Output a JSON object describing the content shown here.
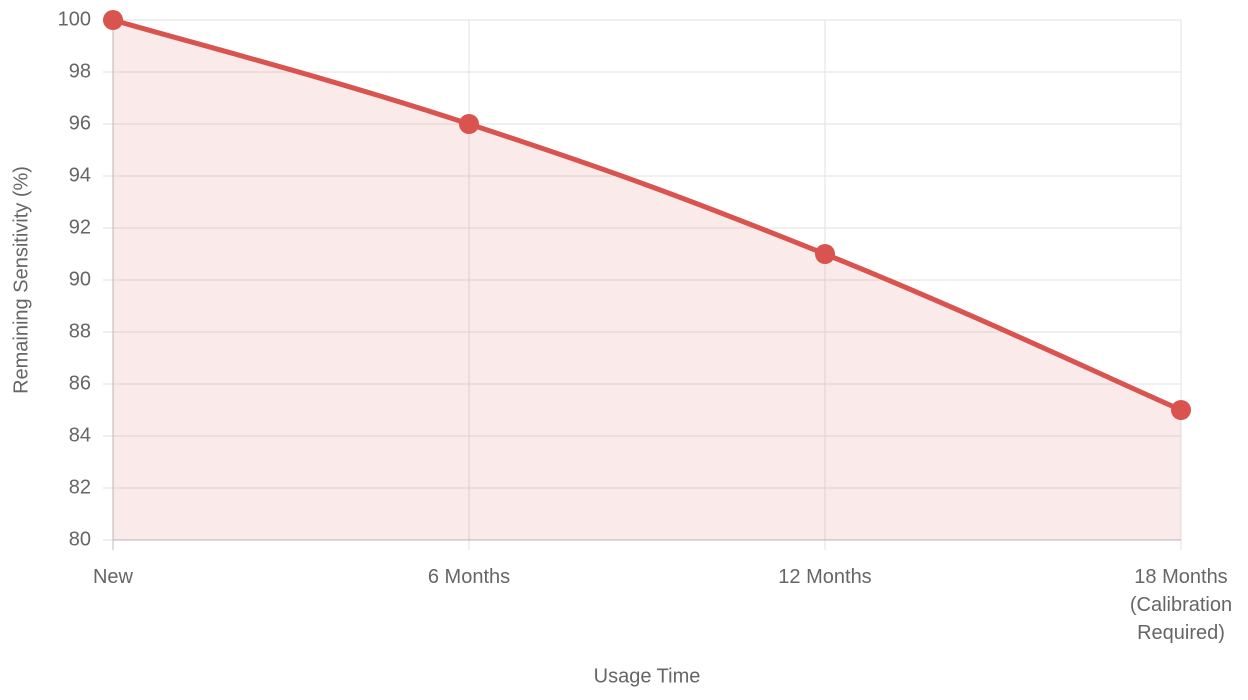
{
  "chart_data": {
    "type": "line",
    "categories": [
      "New",
      "6 Months",
      "12 Months",
      "18 Months (Calibration Required)"
    ],
    "series": [
      {
        "name": "Remaining Sensitivity",
        "color": "#d9534f",
        "values": [
          100,
          96,
          91,
          85
        ]
      }
    ],
    "x_label": "Usage Time",
    "y_label": "Remaining Sensitivity (%)",
    "ylim": [
      80,
      100
    ],
    "yticks": [
      80,
      82,
      84,
      86,
      88,
      90,
      92,
      94,
      96,
      98,
      100
    ],
    "grid": true,
    "fill": true,
    "legend": false
  }
}
